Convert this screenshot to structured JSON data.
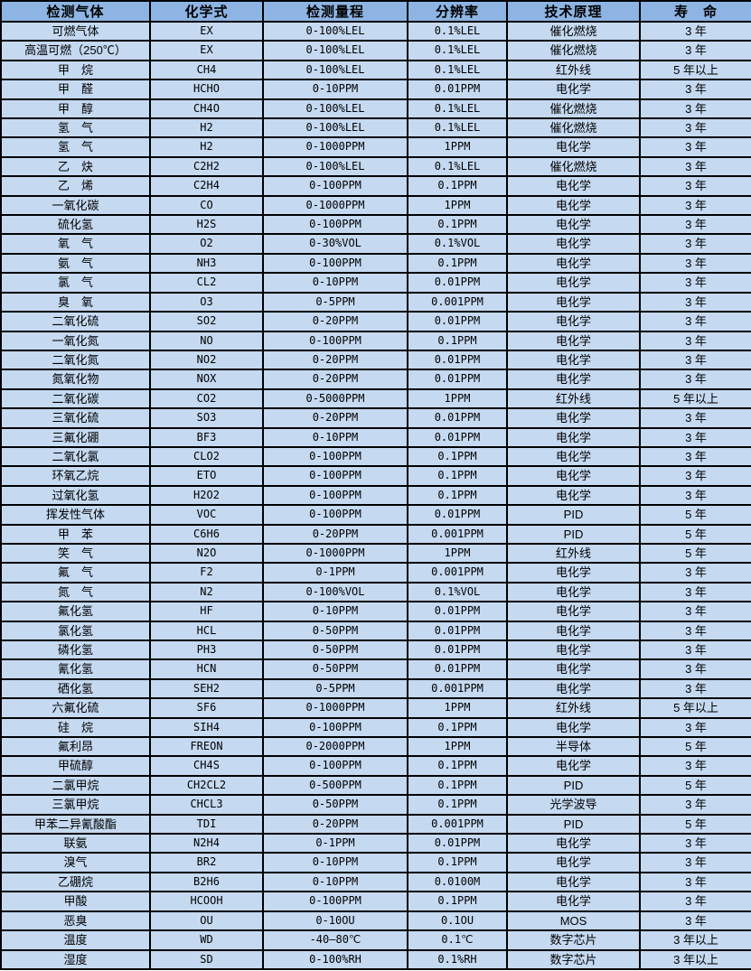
{
  "table": {
    "columns": [
      "检测气体",
      "化学式",
      "检测量程",
      "分辨率",
      "技术原理",
      "寿　命"
    ],
    "colors": {
      "header_bg": "#8DB4E2",
      "row_bg": "#C5D9F1",
      "border": "#000000",
      "text": "#000000"
    },
    "rows": [
      {
        "gas": "可燃气体",
        "formula": "EX",
        "range": "0-100%LEL",
        "resolution": "0.1%LEL",
        "principle": "催化燃烧",
        "life": "3 年"
      },
      {
        "gas": "高温可燃（250℃）",
        "formula": "EX",
        "range": "0-100%LEL",
        "resolution": "0.1%LEL",
        "principle": "催化燃烧",
        "life": "3 年"
      },
      {
        "gas": "甲　烷",
        "formula": "CH4",
        "range": "0-100%LEL",
        "resolution": "0.1%LEL",
        "principle": "红外线",
        "life": "5 年以上"
      },
      {
        "gas": "甲　醛",
        "formula": "HCHO",
        "range": "0-10PPM",
        "resolution": "0.01PPM",
        "principle": "电化学",
        "life": "3 年"
      },
      {
        "gas": "甲　醇",
        "formula": "CH4O",
        "range": "0-100%LEL",
        "resolution": "0.1%LEL",
        "principle": "催化燃烧",
        "life": "3 年"
      },
      {
        "gas": "氢　气",
        "formula": "H2",
        "range": "0-100%LEL",
        "resolution": "0.1%LEL",
        "principle": "催化燃烧",
        "life": "3 年"
      },
      {
        "gas": "氢　气",
        "formula": "H2",
        "range": "0-1000PPM",
        "resolution": "1PPM",
        "principle": "电化学",
        "life": "3 年"
      },
      {
        "gas": "乙　炔",
        "formula": "C2H2",
        "range": "0-100%LEL",
        "resolution": "0.1%LEL",
        "principle": "催化燃烧",
        "life": "3 年"
      },
      {
        "gas": "乙　烯",
        "formula": "C2H4",
        "range": "0-100PPM",
        "resolution": "0.1PPM",
        "principle": "电化学",
        "life": "3 年"
      },
      {
        "gas": "一氧化碳",
        "formula": "CO",
        "range": "0-1000PPM",
        "resolution": "1PPM",
        "principle": "电化学",
        "life": "3 年"
      },
      {
        "gas": "硫化氢",
        "formula": "H2S",
        "range": "0-100PPM",
        "resolution": "0.1PPM",
        "principle": "电化学",
        "life": "3 年"
      },
      {
        "gas": "氧　气",
        "formula": "O2",
        "range": "0-30%VOL",
        "resolution": "0.1%VOL",
        "principle": "电化学",
        "life": "3 年"
      },
      {
        "gas": "氨　气",
        "formula": "NH3",
        "range": "0-100PPM",
        "resolution": "0.1PPM",
        "principle": "电化学",
        "life": "3 年"
      },
      {
        "gas": "氯　气",
        "formula": "CL2",
        "range": "0-10PPM",
        "resolution": "0.01PPM",
        "principle": "电化学",
        "life": "3 年"
      },
      {
        "gas": "臭　氧",
        "formula": "O3",
        "range": "0-5PPM",
        "resolution": "0.001PPM",
        "principle": "电化学",
        "life": "3 年"
      },
      {
        "gas": "二氧化硫",
        "formula": "SO2",
        "range": "0-20PPM",
        "resolution": "0.01PPM",
        "principle": "电化学",
        "life": "3 年"
      },
      {
        "gas": "一氧化氮",
        "formula": "NO",
        "range": "0-100PPM",
        "resolution": "0.1PPM",
        "principle": "电化学",
        "life": "3 年"
      },
      {
        "gas": "二氧化氮",
        "formula": "NO2",
        "range": "0-20PPM",
        "resolution": "0.01PPM",
        "principle": "电化学",
        "life": "3 年"
      },
      {
        "gas": "氮氧化物",
        "formula": "NOX",
        "range": "0-20PPM",
        "resolution": "0.01PPM",
        "principle": "电化学",
        "life": "3 年"
      },
      {
        "gas": "二氧化碳",
        "formula": "CO2",
        "range": "0-5000PPM",
        "resolution": "1PPM",
        "principle": "红外线",
        "life": "5 年以上"
      },
      {
        "gas": "三氧化硫",
        "formula": "SO3",
        "range": "0-20PPM",
        "resolution": "0.01PPM",
        "principle": "电化学",
        "life": "3 年"
      },
      {
        "gas": "三氟化硼",
        "formula": "BF3",
        "range": "0-10PPM",
        "resolution": "0.01PPM",
        "principle": "电化学",
        "life": "3 年"
      },
      {
        "gas": "二氧化氯",
        "formula": "CLO2",
        "range": "0-100PPM",
        "resolution": "0.1PPM",
        "principle": "电化学",
        "life": "3 年"
      },
      {
        "gas": "环氧乙烷",
        "formula": "ETO",
        "range": "0-100PPM",
        "resolution": "0.1PPM",
        "principle": "电化学",
        "life": "3 年"
      },
      {
        "gas": "过氧化氢",
        "formula": "H2O2",
        "range": "0-100PPM",
        "resolution": "0.1PPM",
        "principle": "电化学",
        "life": "3 年"
      },
      {
        "gas": "挥发性气体",
        "formula": "VOC",
        "range": "0-100PPM",
        "resolution": "0.01PPM",
        "principle": "PID",
        "life": "5 年"
      },
      {
        "gas": "甲　苯",
        "formula": "C6H6",
        "range": "0-20PPM",
        "resolution": "0.001PPM",
        "principle": "PID",
        "life": "5 年"
      },
      {
        "gas": "笑　气",
        "formula": "N2O",
        "range": "0-1000PPM",
        "resolution": "1PPM",
        "principle": "红外线",
        "life": "5 年"
      },
      {
        "gas": "氟　气",
        "formula": "F2",
        "range": "0-1PPM",
        "resolution": "0.001PPM",
        "principle": "电化学",
        "life": "3 年"
      },
      {
        "gas": "氮　气",
        "formula": "N2",
        "range": "0-100%VOL",
        "resolution": "0.1%VOL",
        "principle": "电化学",
        "life": "3 年"
      },
      {
        "gas": "氟化氢",
        "formula": "HF",
        "range": "0-10PPM",
        "resolution": "0.01PPM",
        "principle": "电化学",
        "life": "3 年"
      },
      {
        "gas": "氯化氢",
        "formula": "HCL",
        "range": "0-50PPM",
        "resolution": "0.01PPM",
        "principle": "电化学",
        "life": "3 年"
      },
      {
        "gas": "磷化氢",
        "formula": "PH3",
        "range": "0-50PPM",
        "resolution": "0.01PPM",
        "principle": "电化学",
        "life": "3 年"
      },
      {
        "gas": "氰化氢",
        "formula": "HCN",
        "range": "0-50PPM",
        "resolution": "0.01PPM",
        "principle": "电化学",
        "life": "3 年"
      },
      {
        "gas": "硒化氢",
        "formula": "SEH2",
        "range": "0-5PPM",
        "resolution": "0.001PPM",
        "principle": "电化学",
        "life": "3 年"
      },
      {
        "gas": "六氟化硫",
        "formula": "SF6",
        "range": "0-1000PPM",
        "resolution": "1PPM",
        "principle": "红外线",
        "life": "5 年以上"
      },
      {
        "gas": "硅　烷",
        "formula": "SIH4",
        "range": "0-100PPM",
        "resolution": "0.1PPM",
        "principle": "电化学",
        "life": "3 年"
      },
      {
        "gas": "氟利昂",
        "formula": "FREON",
        "range": "0-2000PPM",
        "resolution": "1PPM",
        "principle": "半导体",
        "life": "5 年"
      },
      {
        "gas": "甲硫醇",
        "formula": "CH4S",
        "range": "0-100PPM",
        "resolution": "0.1PPM",
        "principle": "电化学",
        "life": "3 年"
      },
      {
        "gas": "二氯甲烷",
        "formula": "CH2CL2",
        "range": "0-500PPM",
        "resolution": "0.1PPM",
        "principle": "PID",
        "life": "5 年"
      },
      {
        "gas": "三氯甲烷",
        "formula": "CHCL3",
        "range": "0-50PPM",
        "resolution": "0.1PPM",
        "principle": "光学波导",
        "life": "3 年"
      },
      {
        "gas": "甲苯二异氰酸酯",
        "formula": "TDI",
        "range": "0-20PPM",
        "resolution": "0.001PPM",
        "principle": "PID",
        "life": "5 年"
      },
      {
        "gas": "联氨",
        "formula": "N2H4",
        "range": "0-1PPM",
        "resolution": "0.01PPM",
        "principle": "电化学",
        "life": "3 年"
      },
      {
        "gas": "溴气",
        "formula": "BR2",
        "range": "0-10PPM",
        "resolution": "0.1PPM",
        "principle": "电化学",
        "life": "3 年"
      },
      {
        "gas": "乙硼烷",
        "formula": "B2H6",
        "range": "0-10PPM",
        "resolution": "0.0100M",
        "principle": "电化学",
        "life": "3 年"
      },
      {
        "gas": "甲酸",
        "formula": "HCOOH",
        "range": "0-100PPM",
        "resolution": "0.1PPM",
        "principle": "电化学",
        "life": "3 年"
      },
      {
        "gas": "恶臭",
        "formula": "OU",
        "range": "0-10OU",
        "resolution": "0.1OU",
        "principle": "MOS",
        "life": "3 年"
      },
      {
        "gas": "温度",
        "formula": "WD",
        "range": "-40—80℃",
        "resolution": "0.1℃",
        "principle": "数字芯片",
        "life": "3 年以上"
      },
      {
        "gas": "湿度",
        "formula": "SD",
        "range": "0-100%RH",
        "resolution": "0.1%RH",
        "principle": "数字芯片",
        "life": "3 年以上"
      }
    ]
  }
}
